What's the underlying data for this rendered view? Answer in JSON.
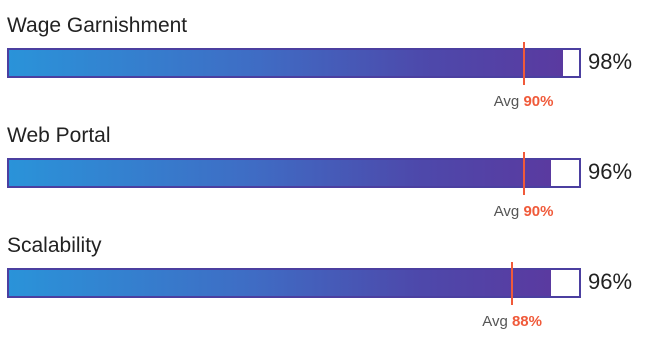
{
  "chart_data": {
    "type": "bar",
    "orientation": "horizontal",
    "xlim": [
      0,
      100
    ],
    "value_unit": "%",
    "average_label": "Avg",
    "colors": {
      "fill_start": "#2a93d9",
      "fill_end": "#5a3aa0",
      "track_border": "#4b3fa0",
      "average_marker": "#f05a3a"
    },
    "bars": [
      {
        "name": "Wage Garnishment",
        "value": 98,
        "value_label": "98%",
        "avg": 90,
        "avg_label": "90%"
      },
      {
        "name": "Web Portal",
        "value": 96,
        "value_label": "96%",
        "avg": 90,
        "avg_label": "90%"
      },
      {
        "name": "Scalability",
        "value": 96,
        "value_label": "96%",
        "avg": 88,
        "avg_label": "88%"
      }
    ]
  }
}
